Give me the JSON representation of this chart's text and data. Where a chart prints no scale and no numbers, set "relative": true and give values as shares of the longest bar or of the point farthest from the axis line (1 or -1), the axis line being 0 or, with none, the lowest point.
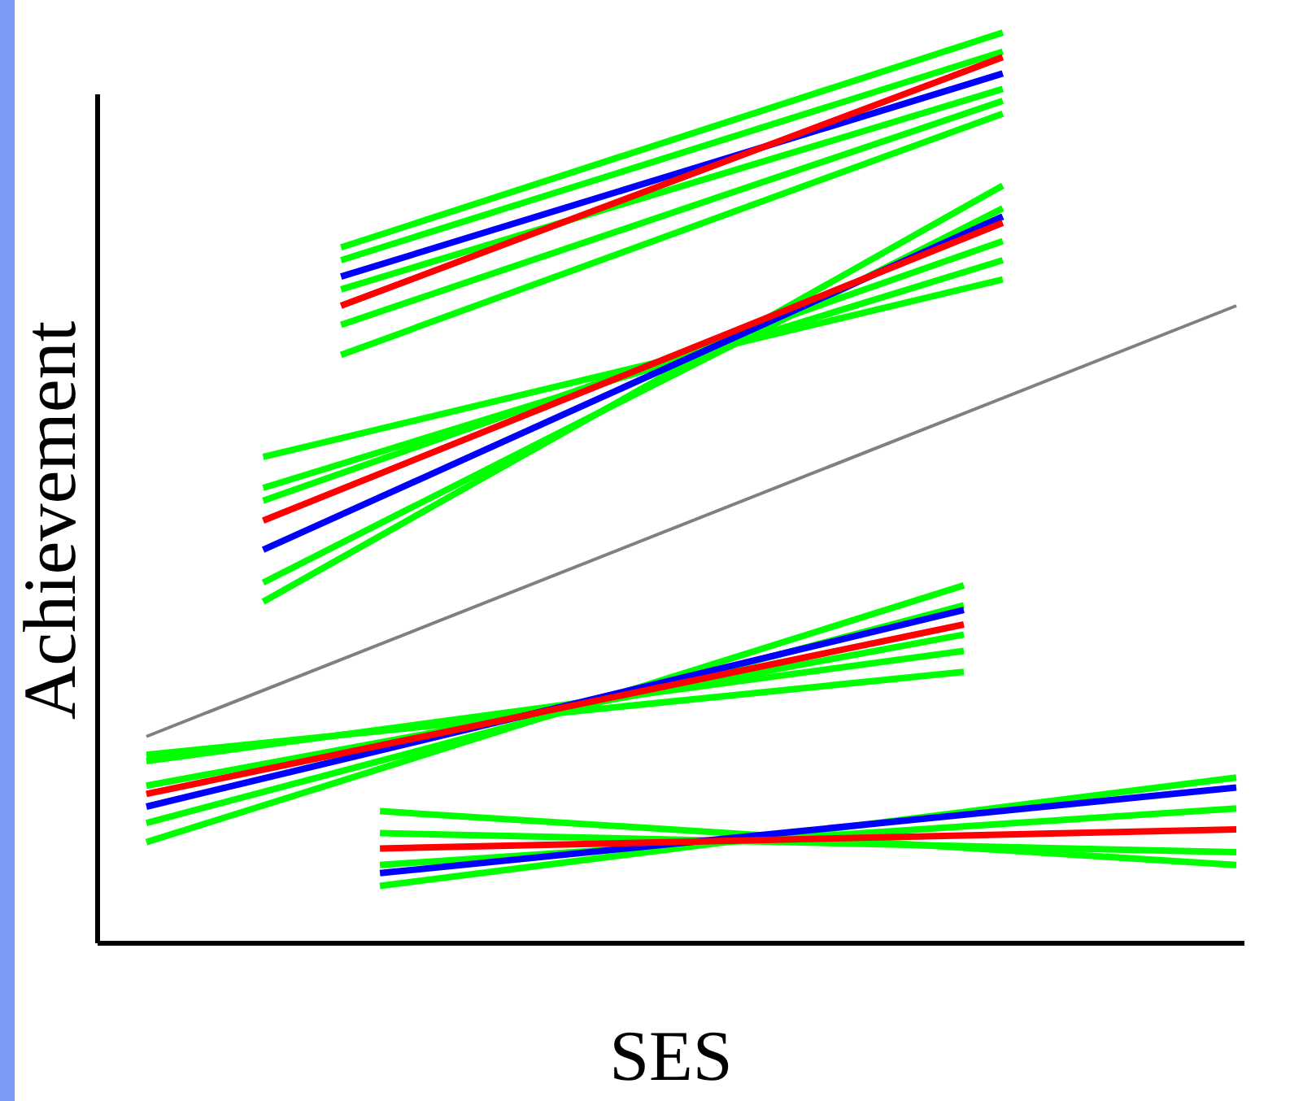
{
  "chart_data": {
    "type": "line",
    "relative": true,
    "xlabel": "SES",
    "ylabel": "Achievement",
    "categories": [
      null,
      null,
      null,
      null,
      null,
      null,
      null,
      null,
      null,
      null,
      null,
      null,
      null,
      null,
      null,
      null,
      null,
      null,
      null,
      null,
      null,
      null,
      null,
      null,
      null,
      null,
      null,
      null,
      null
    ],
    "series": [
      {
        "color": "#808080",
        "values": [
          0.227,
          null,
          null,
          null,
          null,
          null,
          null,
          null,
          null,
          null,
          null,
          null,
          null,
          null,
          null,
          null,
          null,
          null,
          null,
          null,
          null,
          null,
          null,
          null,
          null,
          null,
          null,
          null,
          0.7
        ]
      },
      {
        "color": "#00ff00",
        "values": [
          null,
          null,
          null,
          null,
          null,
          0.764,
          null,
          null,
          null,
          null,
          null,
          null,
          null,
          null,
          null,
          null,
          null,
          null,
          null,
          null,
          null,
          null,
          1.0,
          null,
          null,
          null,
          null,
          null,
          null
        ]
      },
      {
        "color": "#00ff00",
        "values": [
          null,
          null,
          null,
          null,
          null,
          0.75,
          null,
          null,
          null,
          null,
          null,
          null,
          null,
          null,
          null,
          null,
          null,
          null,
          null,
          null,
          null,
          null,
          0.979,
          null,
          null,
          null,
          null,
          null,
          null
        ]
      },
      {
        "color": "#00ff00",
        "values": [
          null,
          null,
          null,
          null,
          null,
          0.718,
          null,
          null,
          null,
          null,
          null,
          null,
          null,
          null,
          null,
          null,
          null,
          null,
          null,
          null,
          null,
          null,
          0.938,
          null,
          null,
          null,
          null,
          null,
          null
        ]
      },
      {
        "color": "#00ff00",
        "values": [
          null,
          null,
          null,
          null,
          null,
          0.679,
          null,
          null,
          null,
          null,
          null,
          null,
          null,
          null,
          null,
          null,
          null,
          null,
          null,
          null,
          null,
          null,
          0.925,
          null,
          null,
          null,
          null,
          null,
          null
        ]
      },
      {
        "color": "#00ff00",
        "values": [
          null,
          null,
          null,
          null,
          null,
          0.646,
          null,
          null,
          null,
          null,
          null,
          null,
          null,
          null,
          null,
          null,
          null,
          null,
          null,
          null,
          null,
          null,
          0.911,
          null,
          null,
          null,
          null,
          null,
          null
        ]
      },
      {
        "color": "#0000ff",
        "values": [
          null,
          null,
          null,
          null,
          null,
          0.732,
          null,
          null,
          null,
          null,
          null,
          null,
          null,
          null,
          null,
          null,
          null,
          null,
          null,
          null,
          null,
          null,
          0.955,
          null,
          null,
          null,
          null,
          null,
          null
        ]
      },
      {
        "color": "#ff0000",
        "values": [
          null,
          null,
          null,
          null,
          null,
          0.7,
          null,
          null,
          null,
          null,
          null,
          null,
          null,
          null,
          null,
          null,
          null,
          null,
          null,
          null,
          null,
          null,
          0.973,
          null,
          null,
          null,
          null,
          null,
          null
        ]
      },
      {
        "color": "#00ff00",
        "values": [
          null,
          null,
          null,
          0.534,
          null,
          null,
          null,
          null,
          null,
          null,
          null,
          null,
          null,
          null,
          null,
          null,
          null,
          null,
          null,
          null,
          null,
          null,
          0.729,
          null,
          null,
          null,
          null,
          null,
          null
        ]
      },
      {
        "color": "#00ff00",
        "values": [
          null,
          null,
          null,
          0.5,
          null,
          null,
          null,
          null,
          null,
          null,
          null,
          null,
          null,
          null,
          null,
          null,
          null,
          null,
          null,
          null,
          null,
          null,
          0.75,
          null,
          null,
          null,
          null,
          null,
          null
        ]
      },
      {
        "color": "#00ff00",
        "values": [
          null,
          null,
          null,
          0.486,
          null,
          null,
          null,
          null,
          null,
          null,
          null,
          null,
          null,
          null,
          null,
          null,
          null,
          null,
          null,
          null,
          null,
          null,
          0.771,
          null,
          null,
          null,
          null,
          null,
          null
        ]
      },
      {
        "color": "#00ff00",
        "values": [
          null,
          null,
          null,
          0.396,
          null,
          null,
          null,
          null,
          null,
          null,
          null,
          null,
          null,
          null,
          null,
          null,
          null,
          null,
          null,
          null,
          null,
          null,
          0.807,
          null,
          null,
          null,
          null,
          null,
          null
        ]
      },
      {
        "color": "#00ff00",
        "values": [
          null,
          null,
          null,
          0.375,
          null,
          null,
          null,
          null,
          null,
          null,
          null,
          null,
          null,
          null,
          null,
          null,
          null,
          null,
          null,
          null,
          null,
          null,
          0.832,
          null,
          null,
          null,
          null,
          null,
          null
        ]
      },
      {
        "color": "#0000ff",
        "values": [
          null,
          null,
          null,
          0.432,
          null,
          null,
          null,
          null,
          null,
          null,
          null,
          null,
          null,
          null,
          null,
          null,
          null,
          null,
          null,
          null,
          null,
          null,
          0.798,
          null,
          null,
          null,
          null,
          null,
          null
        ]
      },
      {
        "color": "#ff0000",
        "values": [
          null,
          null,
          null,
          0.464,
          null,
          null,
          null,
          null,
          null,
          null,
          null,
          null,
          null,
          null,
          null,
          null,
          null,
          null,
          null,
          null,
          null,
          null,
          0.791,
          null,
          null,
          null,
          null,
          null,
          null
        ]
      },
      {
        "color": "#00ff00",
        "values": [
          0.207,
          null,
          null,
          null,
          null,
          null,
          null,
          null,
          null,
          null,
          null,
          null,
          null,
          null,
          null,
          null,
          null,
          null,
          null,
          null,
          null,
          0.298,
          null,
          null,
          null,
          null,
          null,
          null,
          null
        ]
      },
      {
        "color": "#00ff00",
        "values": [
          0.2,
          null,
          null,
          null,
          null,
          null,
          null,
          null,
          null,
          null,
          null,
          null,
          null,
          null,
          null,
          null,
          null,
          null,
          null,
          null,
          null,
          0.321,
          null,
          null,
          null,
          null,
          null,
          null,
          null
        ]
      },
      {
        "color": "#00ff00",
        "values": [
          0.173,
          null,
          null,
          null,
          null,
          null,
          null,
          null,
          null,
          null,
          null,
          null,
          null,
          null,
          null,
          null,
          null,
          null,
          null,
          null,
          null,
          0.339,
          null,
          null,
          null,
          null,
          null,
          null,
          null
        ]
      },
      {
        "color": "#00ff00",
        "values": [
          0.132,
          null,
          null,
          null,
          null,
          null,
          null,
          null,
          null,
          null,
          null,
          null,
          null,
          null,
          null,
          null,
          null,
          null,
          null,
          null,
          null,
          0.371,
          null,
          null,
          null,
          null,
          null,
          null,
          null
        ]
      },
      {
        "color": "#00ff00",
        "values": [
          0.111,
          null,
          null,
          null,
          null,
          null,
          null,
          null,
          null,
          null,
          null,
          null,
          null,
          null,
          null,
          null,
          null,
          null,
          null,
          null,
          null,
          0.393,
          null,
          null,
          null,
          null,
          null,
          null,
          null
        ]
      },
      {
        "color": "#0000ff",
        "values": [
          0.15,
          null,
          null,
          null,
          null,
          null,
          null,
          null,
          null,
          null,
          null,
          null,
          null,
          null,
          null,
          null,
          null,
          null,
          null,
          null,
          null,
          0.366,
          null,
          null,
          null,
          null,
          null,
          null,
          null
        ]
      },
      {
        "color": "#ff0000",
        "values": [
          0.164,
          null,
          null,
          null,
          null,
          null,
          null,
          null,
          null,
          null,
          null,
          null,
          null,
          null,
          null,
          null,
          null,
          null,
          null,
          null,
          null,
          0.35,
          null,
          null,
          null,
          null,
          null,
          null,
          null
        ]
      },
      {
        "color": "#00ff00",
        "values": [
          null,
          null,
          null,
          null,
          null,
          null,
          0.145,
          null,
          null,
          null,
          null,
          null,
          null,
          null,
          null,
          null,
          null,
          null,
          null,
          null,
          null,
          null,
          null,
          null,
          null,
          null,
          null,
          null,
          0.086
        ]
      },
      {
        "color": "#00ff00",
        "values": [
          null,
          null,
          null,
          null,
          null,
          null,
          0.121,
          null,
          null,
          null,
          null,
          null,
          null,
          null,
          null,
          null,
          null,
          null,
          null,
          null,
          null,
          null,
          null,
          null,
          null,
          null,
          null,
          null,
          0.1
        ]
      },
      {
        "color": "#00ff00",
        "values": [
          null,
          null,
          null,
          null,
          null,
          null,
          0.086,
          null,
          null,
          null,
          null,
          null,
          null,
          null,
          null,
          null,
          null,
          null,
          null,
          null,
          null,
          null,
          null,
          null,
          null,
          null,
          null,
          null,
          0.148
        ]
      },
      {
        "color": "#00ff00",
        "values": [
          null,
          null,
          null,
          null,
          null,
          null,
          0.063,
          null,
          null,
          null,
          null,
          null,
          null,
          null,
          null,
          null,
          null,
          null,
          null,
          null,
          null,
          null,
          null,
          null,
          null,
          null,
          null,
          null,
          0.182
        ]
      },
      {
        "color": "#0000ff",
        "values": [
          null,
          null,
          null,
          null,
          null,
          null,
          0.077,
          null,
          null,
          null,
          null,
          null,
          null,
          null,
          null,
          null,
          null,
          null,
          null,
          null,
          null,
          null,
          null,
          null,
          null,
          null,
          null,
          null,
          0.171
        ]
      },
      {
        "color": "#ff0000",
        "values": [
          null,
          null,
          null,
          null,
          null,
          null,
          0.104,
          null,
          null,
          null,
          null,
          null,
          null,
          null,
          null,
          null,
          null,
          null,
          null,
          null,
          null,
          null,
          null,
          null,
          null,
          null,
          null,
          null,
          0.125
        ]
      }
    ]
  }
}
